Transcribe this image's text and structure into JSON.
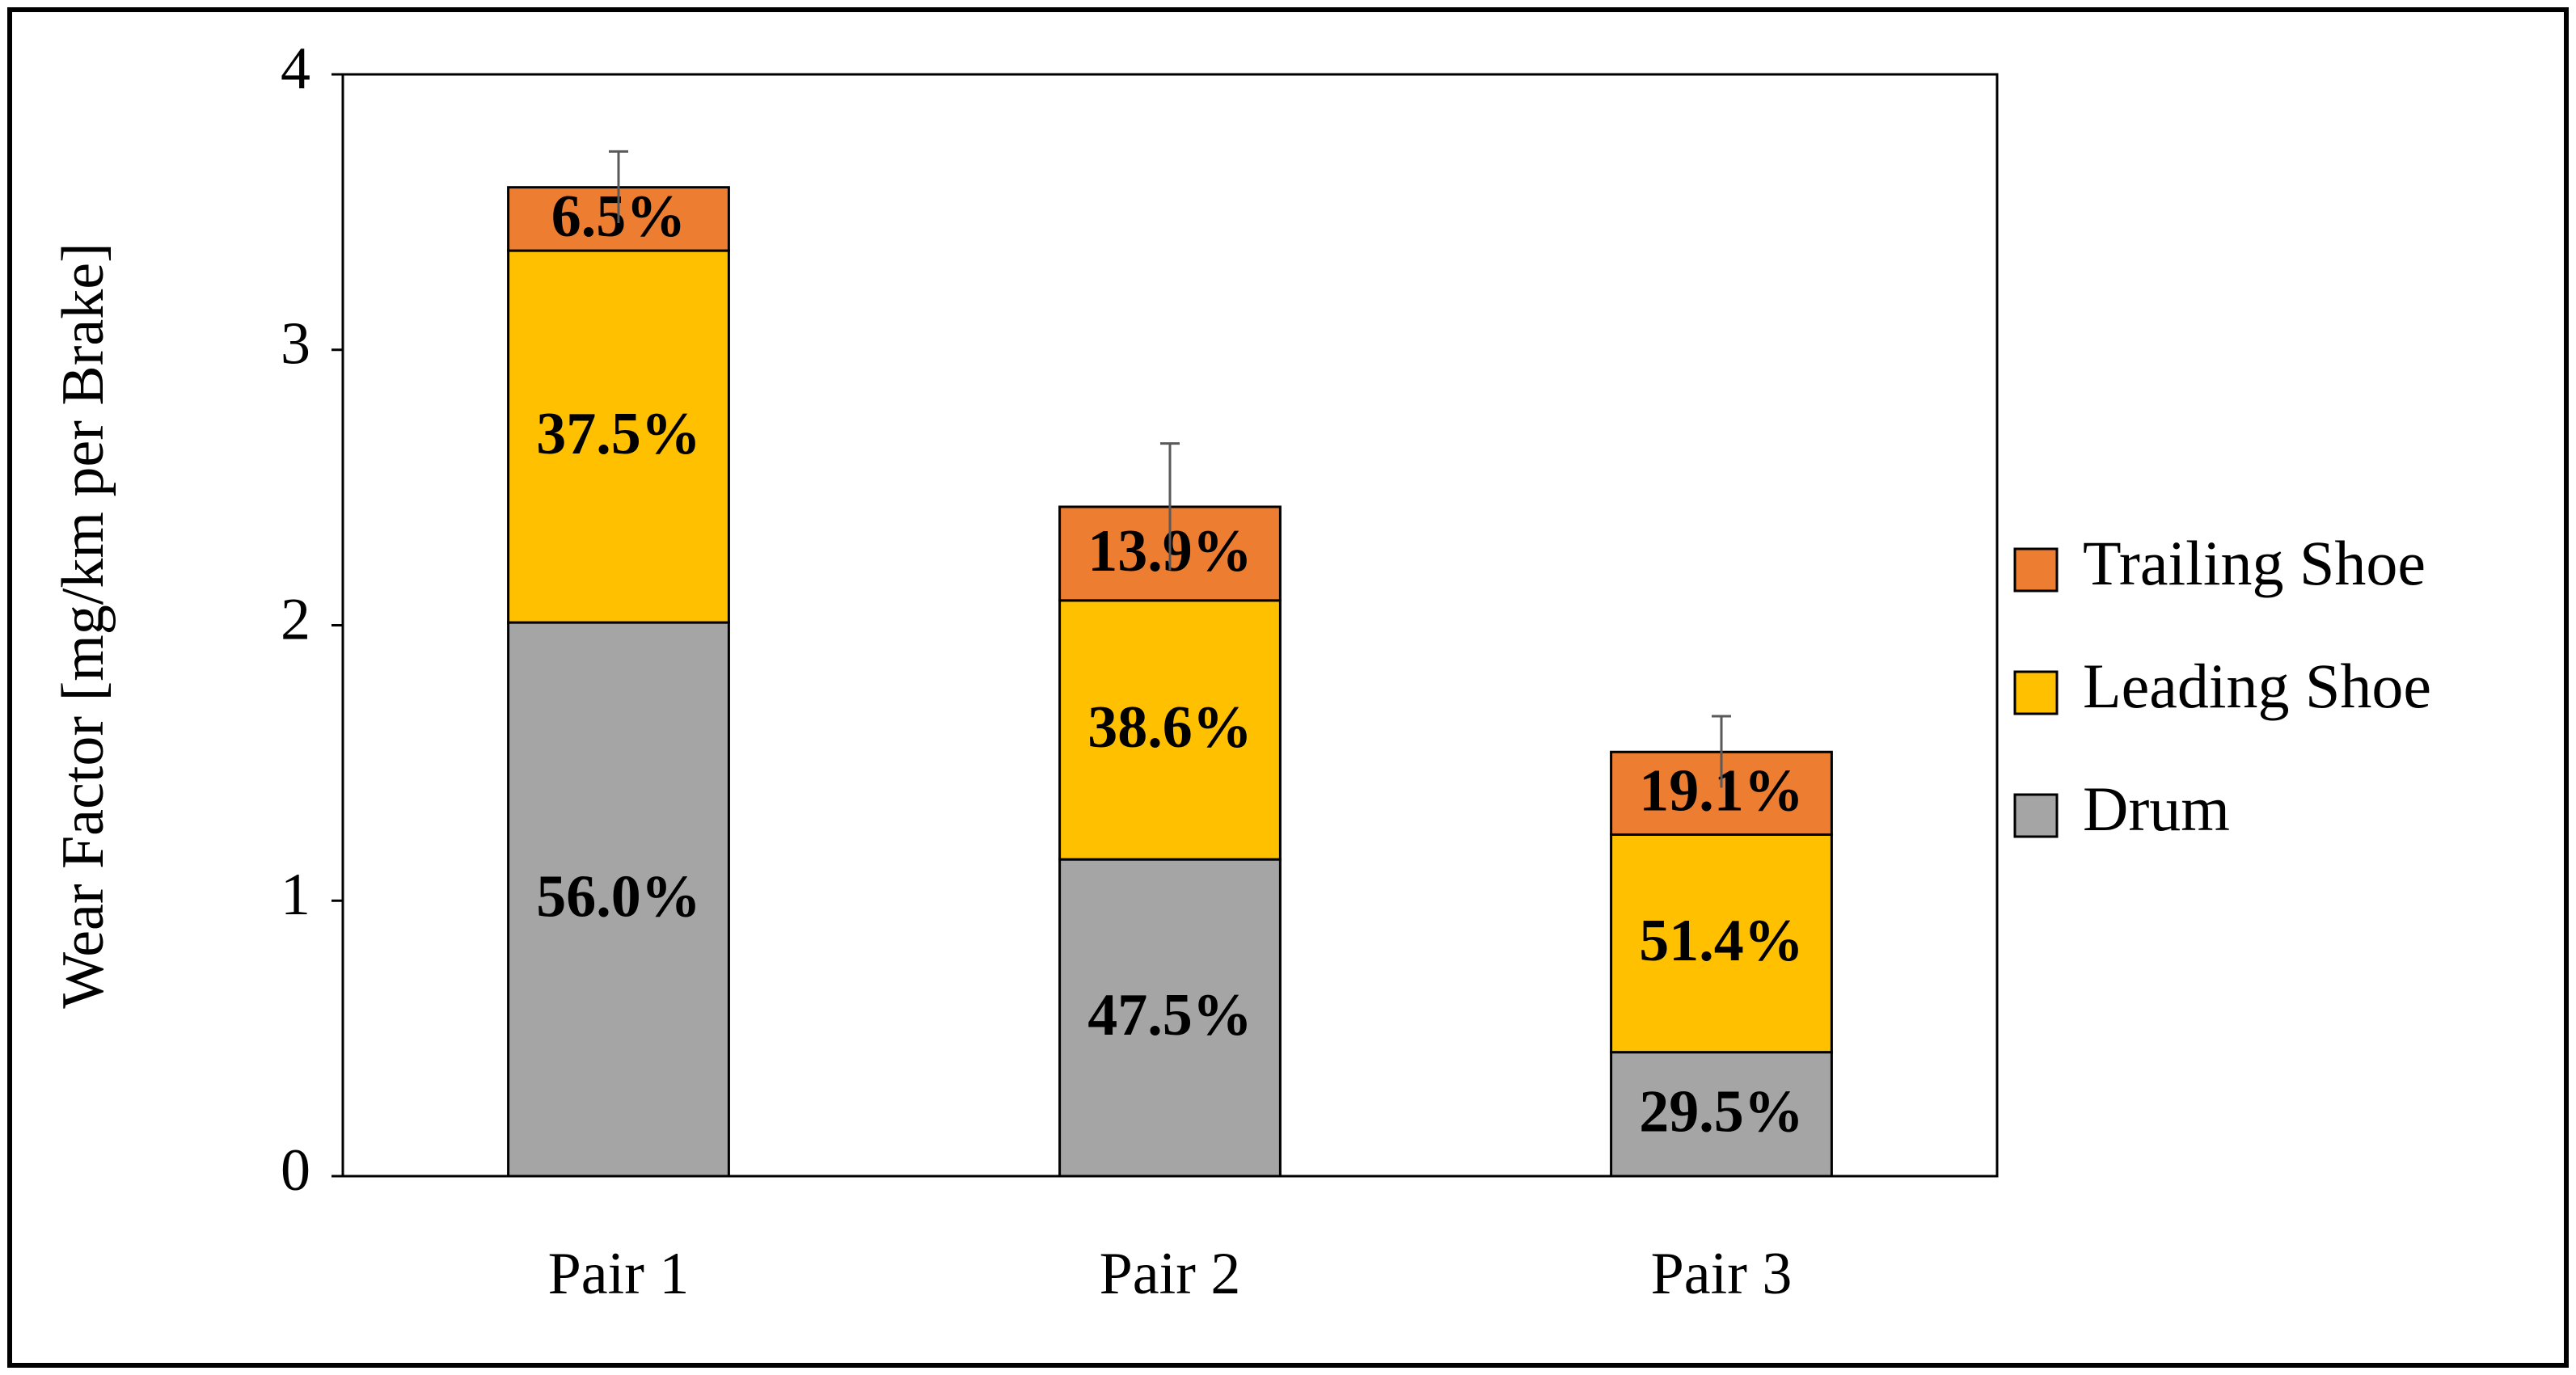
{
  "chart_data": {
    "type": "stacked_bar",
    "y_label": "Wear Factor [mg/km per Brake]",
    "categories": [
      "Pair 1",
      "Pair 2",
      "Pair 3"
    ],
    "series": [
      {
        "name": "Drum",
        "color": "#a5a5a5",
        "values": [
          2.01,
          1.15,
          0.45
        ],
        "value_labels": [
          "56.0%",
          "47.5%",
          "29.5%"
        ]
      },
      {
        "name": "Leading Shoe",
        "color": "#ffc000",
        "values": [
          1.35,
          0.94,
          0.79
        ],
        "value_labels": [
          "37.5%",
          "38.6%",
          "51.4%"
        ]
      },
      {
        "name": "Trailing Shoe",
        "color": "#ed7d31",
        "values": [
          0.23,
          0.34,
          0.3
        ],
        "value_labels": [
          "6.5%",
          "13.9%",
          "19.1%"
        ],
        "errors": [
          0.13,
          0.23,
          0.13
        ]
      }
    ],
    "ylim": [
      0,
      4
    ],
    "yticks": [
      0,
      1,
      2,
      3,
      4
    ],
    "grid": false,
    "legend": "right"
  }
}
